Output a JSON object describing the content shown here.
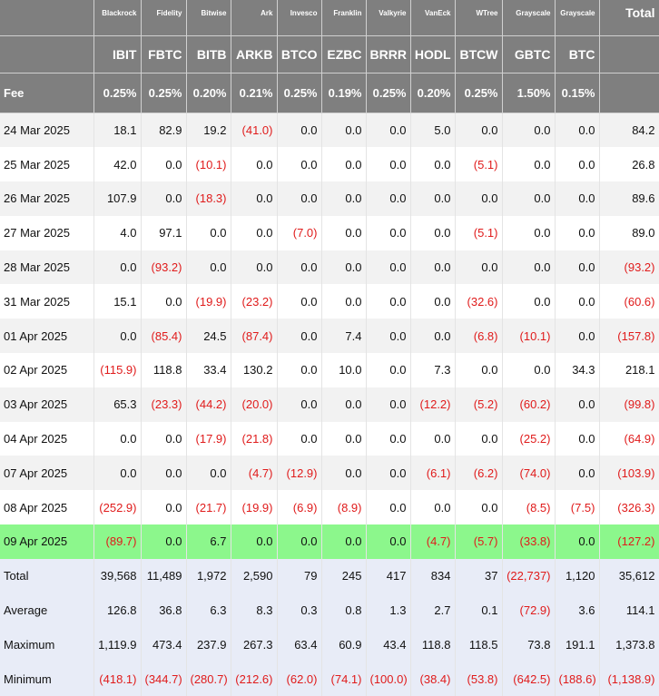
{
  "header": {
    "issuers": [
      "Blackrock",
      "Fidelity",
      "Bitwise",
      "Ark",
      "Invesco",
      "Franklin",
      "Valkyrie",
      "VanEck",
      "WTree",
      "Grayscale",
      "Grayscale"
    ],
    "total_label": "Total",
    "tickers": [
      "IBIT",
      "FBTC",
      "BITB",
      "ARKB",
      "BTCO",
      "EZBC",
      "BRRR",
      "HODL",
      "BTCW",
      "GBTC",
      "BTC"
    ],
    "fee_label": "Fee",
    "fees": [
      "0.25%",
      "0.25%",
      "0.20%",
      "0.21%",
      "0.25%",
      "0.19%",
      "0.25%",
      "0.20%",
      "0.25%",
      "1.50%",
      "0.15%"
    ]
  },
  "rows": [
    {
      "date": "24 Mar 2025",
      "values": [
        "18.1",
        "82.9",
        "19.2",
        "(41.0)",
        "0.0",
        "0.0",
        "0.0",
        "5.0",
        "0.0",
        "0.0",
        "0.0",
        "84.2"
      ]
    },
    {
      "date": "25 Mar 2025",
      "values": [
        "42.0",
        "0.0",
        "(10.1)",
        "0.0",
        "0.0",
        "0.0",
        "0.0",
        "0.0",
        "(5.1)",
        "0.0",
        "0.0",
        "26.8"
      ]
    },
    {
      "date": "26 Mar 2025",
      "values": [
        "107.9",
        "0.0",
        "(18.3)",
        "0.0",
        "0.0",
        "0.0",
        "0.0",
        "0.0",
        "0.0",
        "0.0",
        "0.0",
        "89.6"
      ]
    },
    {
      "date": "27 Mar 2025",
      "values": [
        "4.0",
        "97.1",
        "0.0",
        "0.0",
        "(7.0)",
        "0.0",
        "0.0",
        "0.0",
        "(5.1)",
        "0.0",
        "0.0",
        "89.0"
      ]
    },
    {
      "date": "28 Mar 2025",
      "values": [
        "0.0",
        "(93.2)",
        "0.0",
        "0.0",
        "0.0",
        "0.0",
        "0.0",
        "0.0",
        "0.0",
        "0.0",
        "0.0",
        "(93.2)"
      ]
    },
    {
      "date": "31 Mar 2025",
      "values": [
        "15.1",
        "0.0",
        "(19.9)",
        "(23.2)",
        "0.0",
        "0.0",
        "0.0",
        "0.0",
        "(32.6)",
        "0.0",
        "0.0",
        "(60.6)"
      ]
    },
    {
      "date": "01 Apr 2025",
      "values": [
        "0.0",
        "(85.4)",
        "24.5",
        "(87.4)",
        "0.0",
        "7.4",
        "0.0",
        "0.0",
        "(6.8)",
        "(10.1)",
        "0.0",
        "(157.8)"
      ]
    },
    {
      "date": "02 Apr 2025",
      "values": [
        "(115.9)",
        "118.8",
        "33.4",
        "130.2",
        "0.0",
        "10.0",
        "0.0",
        "7.3",
        "0.0",
        "0.0",
        "34.3",
        "218.1"
      ]
    },
    {
      "date": "03 Apr 2025",
      "values": [
        "65.3",
        "(23.3)",
        "(44.2)",
        "(20.0)",
        "0.0",
        "0.0",
        "0.0",
        "(12.2)",
        "(5.2)",
        "(60.2)",
        "0.0",
        "(99.8)"
      ]
    },
    {
      "date": "04 Apr 2025",
      "values": [
        "0.0",
        "0.0",
        "(17.9)",
        "(21.8)",
        "0.0",
        "0.0",
        "0.0",
        "0.0",
        "0.0",
        "(25.2)",
        "0.0",
        "(64.9)"
      ]
    },
    {
      "date": "07 Apr 2025",
      "values": [
        "0.0",
        "0.0",
        "0.0",
        "(4.7)",
        "(12.9)",
        "0.0",
        "0.0",
        "(6.1)",
        "(6.2)",
        "(74.0)",
        "0.0",
        "(103.9)"
      ]
    },
    {
      "date": "08 Apr 2025",
      "values": [
        "(252.9)",
        "0.0",
        "(21.7)",
        "(19.9)",
        "(6.9)",
        "(8.9)",
        "0.0",
        "0.0",
        "0.0",
        "(8.5)",
        "(7.5)",
        "(326.3)"
      ]
    },
    {
      "date": "09 Apr 2025",
      "values": [
        "(89.7)",
        "0.0",
        "6.7",
        "0.0",
        "0.0",
        "0.0",
        "0.0",
        "(4.7)",
        "(5.7)",
        "(33.8)",
        "0.0",
        "(127.2)"
      ]
    }
  ],
  "stats": [
    {
      "label": "Total",
      "values": [
        "39,568",
        "11,489",
        "1,972",
        "2,590",
        "79",
        "245",
        "417",
        "834",
        "37",
        "(22,737)",
        "1,120",
        "35,612"
      ]
    },
    {
      "label": "Average",
      "values": [
        "126.8",
        "36.8",
        "6.3",
        "8.3",
        "0.3",
        "0.8",
        "1.3",
        "2.7",
        "0.1",
        "(72.9)",
        "3.6",
        "114.1"
      ]
    },
    {
      "label": "Maximum",
      "values": [
        "1,119.9",
        "473.4",
        "237.9",
        "267.3",
        "63.4",
        "60.9",
        "43.4",
        "118.8",
        "118.5",
        "73.8",
        "191.1",
        "1,373.8"
      ]
    },
    {
      "label": "Minimum",
      "values": [
        "(418.1)",
        "(344.7)",
        "(280.7)",
        "(212.6)",
        "(62.0)",
        "(74.1)",
        "(100.0)",
        "(38.4)",
        "(53.8)",
        "(642.5)",
        "(188.6)",
        "(1,138.9)"
      ]
    }
  ],
  "colors": {
    "header_bg": "#7f7f7f",
    "negative": "#e01b1b",
    "highlight_row": "#8cf78c",
    "stats_bg": "#e8ecf7",
    "zebra": "#f2f2f2"
  }
}
